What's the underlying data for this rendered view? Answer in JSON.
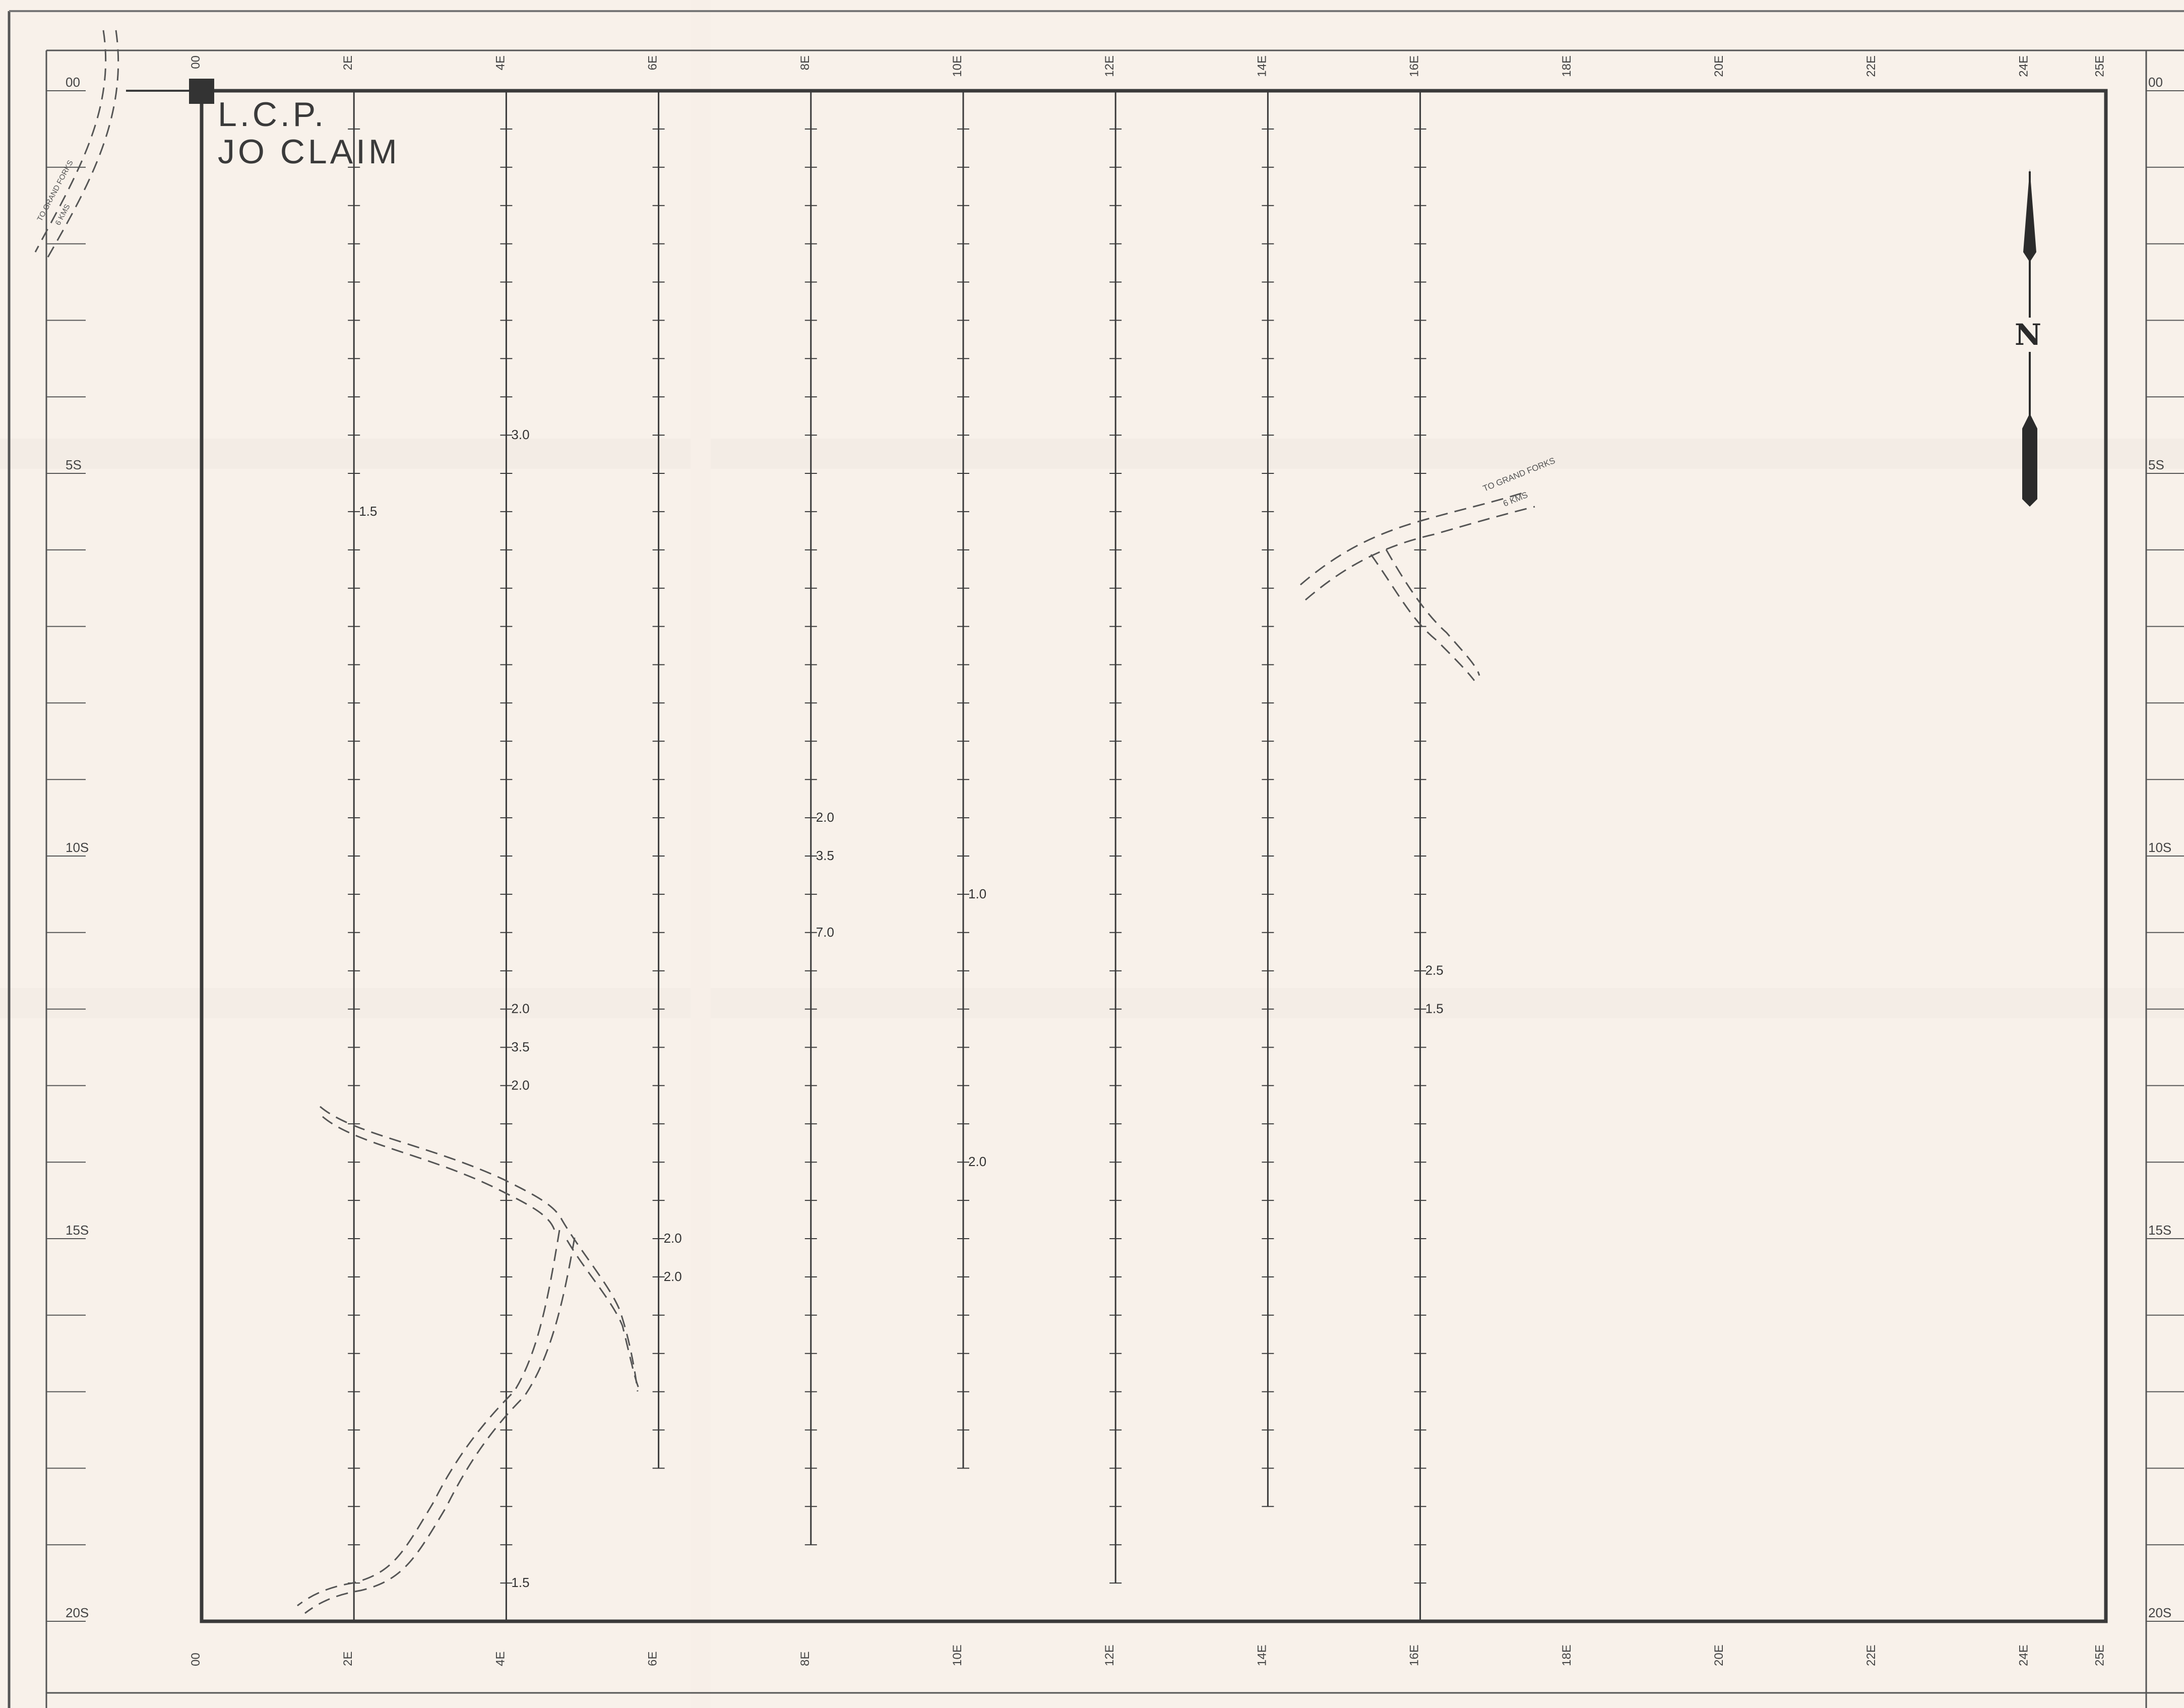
{
  "claim": {
    "lines": [
      "L.C.P.",
      "JO CLAIM"
    ]
  },
  "north_arrow": {
    "label": "N",
    "icon": "north-arrow-icon"
  },
  "colors": {
    "paper": "#f8f1ea",
    "ink": "#3a3a3a"
  },
  "grid": {
    "easting_labels": [
      "00",
      "2E",
      "4E",
      "6E",
      "8E",
      "10E",
      "12E",
      "14E",
      "16E",
      "18E",
      "20E",
      "22E",
      "24E",
      "25E"
    ],
    "northing_labels": [
      "00",
      "5S",
      "10S",
      "15S",
      "20S"
    ]
  },
  "survey_lines": [
    {
      "label": "2E",
      "readings": [
        {
          "station": 5.5,
          "value": "1.5"
        }
      ]
    },
    {
      "label": "4E",
      "readings": [
        {
          "station": 4.5,
          "value": "3.0"
        },
        {
          "station": 12.0,
          "value": "2.0"
        },
        {
          "station": 12.5,
          "value": "3.5"
        },
        {
          "station": 13.0,
          "value": "2.0"
        },
        {
          "station": 19.5,
          "value": "1.5"
        }
      ]
    },
    {
      "label": "6E",
      "readings": [
        {
          "station": 15.0,
          "value": "2.0"
        },
        {
          "station": 15.5,
          "value": "2.0"
        }
      ]
    },
    {
      "label": "8E",
      "readings": [
        {
          "station": 9.5,
          "value": "2.0"
        },
        {
          "station": 10.0,
          "value": "3.5"
        },
        {
          "station": 11.0,
          "value": "7.0"
        }
      ]
    },
    {
      "label": "10E",
      "readings": [
        {
          "station": 10.5,
          "value": "1.0"
        },
        {
          "station": 14.0,
          "value": "2.0"
        }
      ]
    },
    {
      "label": "12E",
      "readings": []
    },
    {
      "label": "14E",
      "readings": []
    },
    {
      "label": "16E",
      "readings": [
        {
          "station": 11.5,
          "value": "2.5"
        },
        {
          "station": 12.0,
          "value": "1.5"
        }
      ]
    }
  ],
  "roads": [
    {
      "label_line1": "TO GRAND FORKS",
      "label_line2": "6 KMS"
    },
    {
      "label_line1": "TO GRAND FORKS",
      "label_line2": "6 KMS"
    }
  ]
}
